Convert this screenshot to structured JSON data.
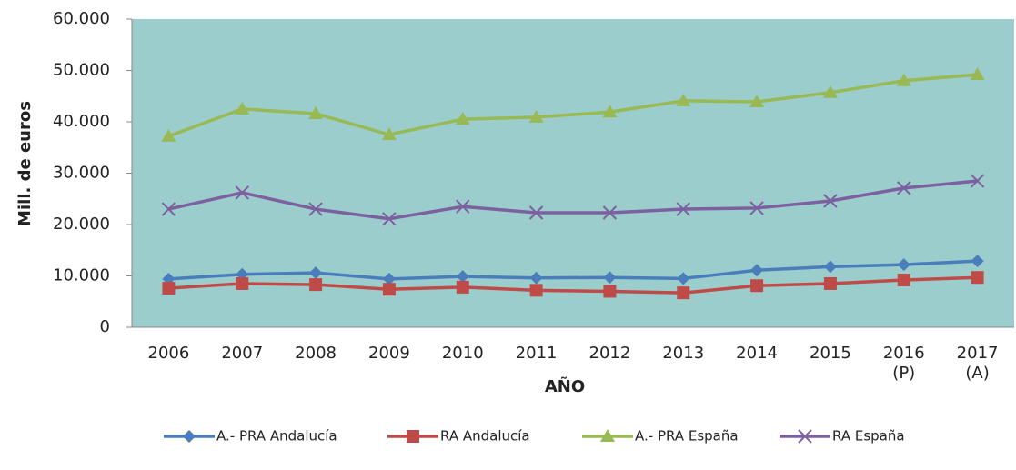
{
  "chart_data": {
    "type": "line",
    "x_label": "AÑO",
    "y_label": "Mill. de euros",
    "categories": [
      "2006",
      "2007",
      "2008",
      "2009",
      "2010",
      "2011",
      "2012",
      "2013",
      "2014",
      "2015",
      "2016\n(P)",
      "2017\n(A)"
    ],
    "series": [
      {
        "name": "A.- PRA Andalucía",
        "color": "#4a7ebb",
        "marker": "diamond",
        "values": [
          9400,
          10300,
          10600,
          9400,
          9900,
          9600,
          9700,
          9500,
          11100,
          11800,
          12200,
          12900
        ]
      },
      {
        "name": "RA Andalucía",
        "color": "#be4b48",
        "marker": "square",
        "values": [
          7600,
          8500,
          8300,
          7400,
          7800,
          7200,
          7000,
          6700,
          8100,
          8500,
          9200,
          9700
        ]
      },
      {
        "name": "A.- PRA España",
        "color": "#98b954",
        "marker": "triangle",
        "values": [
          37200,
          42500,
          41600,
          37500,
          40500,
          40900,
          41900,
          44100,
          43900,
          45700,
          48000,
          49200
        ]
      },
      {
        "name": "RA España",
        "color": "#7d60a0",
        "marker": "x",
        "values": [
          23000,
          26200,
          23000,
          21100,
          23500,
          22300,
          22300,
          23000,
          23200,
          24600,
          27100,
          28500
        ]
      }
    ],
    "ylim": [
      0,
      60000
    ],
    "yticks": [
      0,
      {
        "value": 10000,
        "label": "10.000"
      },
      {
        "value": 20000,
        "label": "20.000"
      },
      {
        "value": 30000,
        "label": "30.000"
      },
      {
        "value": 40000,
        "label": "40.000"
      },
      {
        "value": 50000,
        "label": "50.000"
      },
      {
        "value": 60000,
        "label": "60.000"
      }
    ],
    "grid": false,
    "plot_background": "#9bcdcd",
    "legend": "bottom"
  }
}
